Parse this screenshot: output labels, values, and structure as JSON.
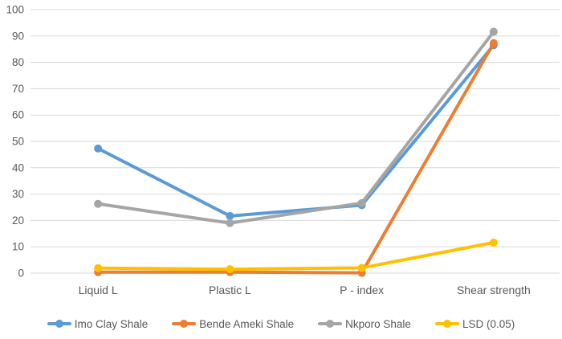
{
  "chart_data": {
    "type": "line",
    "categories": [
      "Liquid L",
      "Plastic L",
      "P - index",
      "Shear strength"
    ],
    "series": [
      {
        "name": "Imo Clay Shale",
        "color": "#5B9BD5",
        "values": [
          47.3,
          21.7,
          25.8,
          86.5
        ]
      },
      {
        "name": "Bende Ameki Shale",
        "color": "#ED7D31",
        "values": [
          0.4,
          0.4,
          0.1,
          87.3
        ]
      },
      {
        "name": "Nkporo Shale",
        "color": "#A5A5A5",
        "values": [
          26.3,
          19.0,
          26.6,
          91.6
        ]
      },
      {
        "name": "LSD (0.05)",
        "color": "#FFC000",
        "values": [
          1.9,
          1.5,
          2.0,
          11.6
        ]
      }
    ],
    "title": "",
    "xlabel": "",
    "ylabel": "",
    "ylim": [
      0,
      100
    ],
    "ytick_step": 10,
    "ytick_labels": [
      "0",
      "10",
      "20",
      "30",
      "40",
      "50",
      "60",
      "70",
      "80",
      "90",
      "100"
    ],
    "grid": true,
    "legend_position": "bottom",
    "marker": "circle"
  },
  "styles": {
    "gridline_color": "#D9D9D9",
    "axis_text_color": "#595959",
    "background_color": "#FFFFFF",
    "line_width": 4,
    "marker_radius": 5
  }
}
